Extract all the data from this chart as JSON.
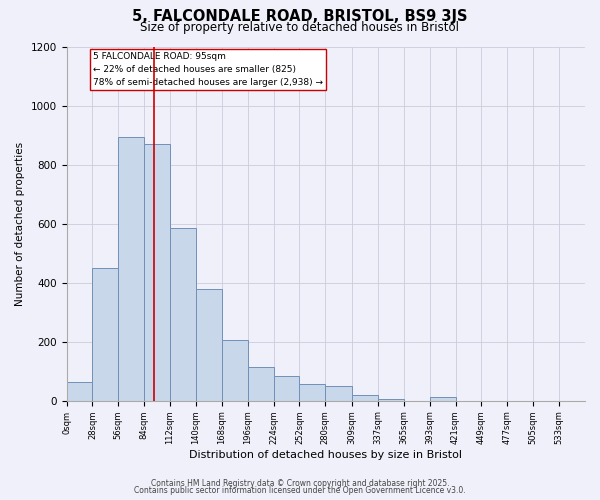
{
  "title": "5, FALCONDALE ROAD, BRISTOL, BS9 3JS",
  "subtitle": "Size of property relative to detached houses in Bristol",
  "xlabel": "Distribution of detached houses by size in Bristol",
  "ylabel": "Number of detached properties",
  "bin_edges": [
    0,
    28,
    56,
    84,
    112,
    140,
    168,
    196,
    224,
    252,
    280,
    309,
    337,
    365,
    393,
    421,
    449,
    477,
    505,
    533,
    561
  ],
  "bar_heights": [
    65,
    450,
    895,
    870,
    585,
    380,
    205,
    115,
    85,
    55,
    50,
    18,
    5,
    0,
    12,
    0,
    0,
    0,
    0,
    0
  ],
  "bar_color": "#c8d8ea",
  "bar_edge_color": "#7090b8",
  "property_size": 95,
  "vline_color": "#cc0000",
  "annotation_box_edge": "#cc0000",
  "annotation_text_line1": "5 FALCONDALE ROAD: 95sqm",
  "annotation_text_line2": "← 22% of detached houses are smaller (825)",
  "annotation_text_line3": "78% of semi-detached houses are larger (2,938) →",
  "ylim": [
    0,
    1200
  ],
  "yticks": [
    0,
    200,
    400,
    600,
    800,
    1000,
    1200
  ],
  "bg_color": "#f0f0fa",
  "grid_color": "#ccccdd",
  "footer_line1": "Contains HM Land Registry data © Crown copyright and database right 2025.",
  "footer_line2": "Contains public sector information licensed under the Open Government Licence v3.0."
}
